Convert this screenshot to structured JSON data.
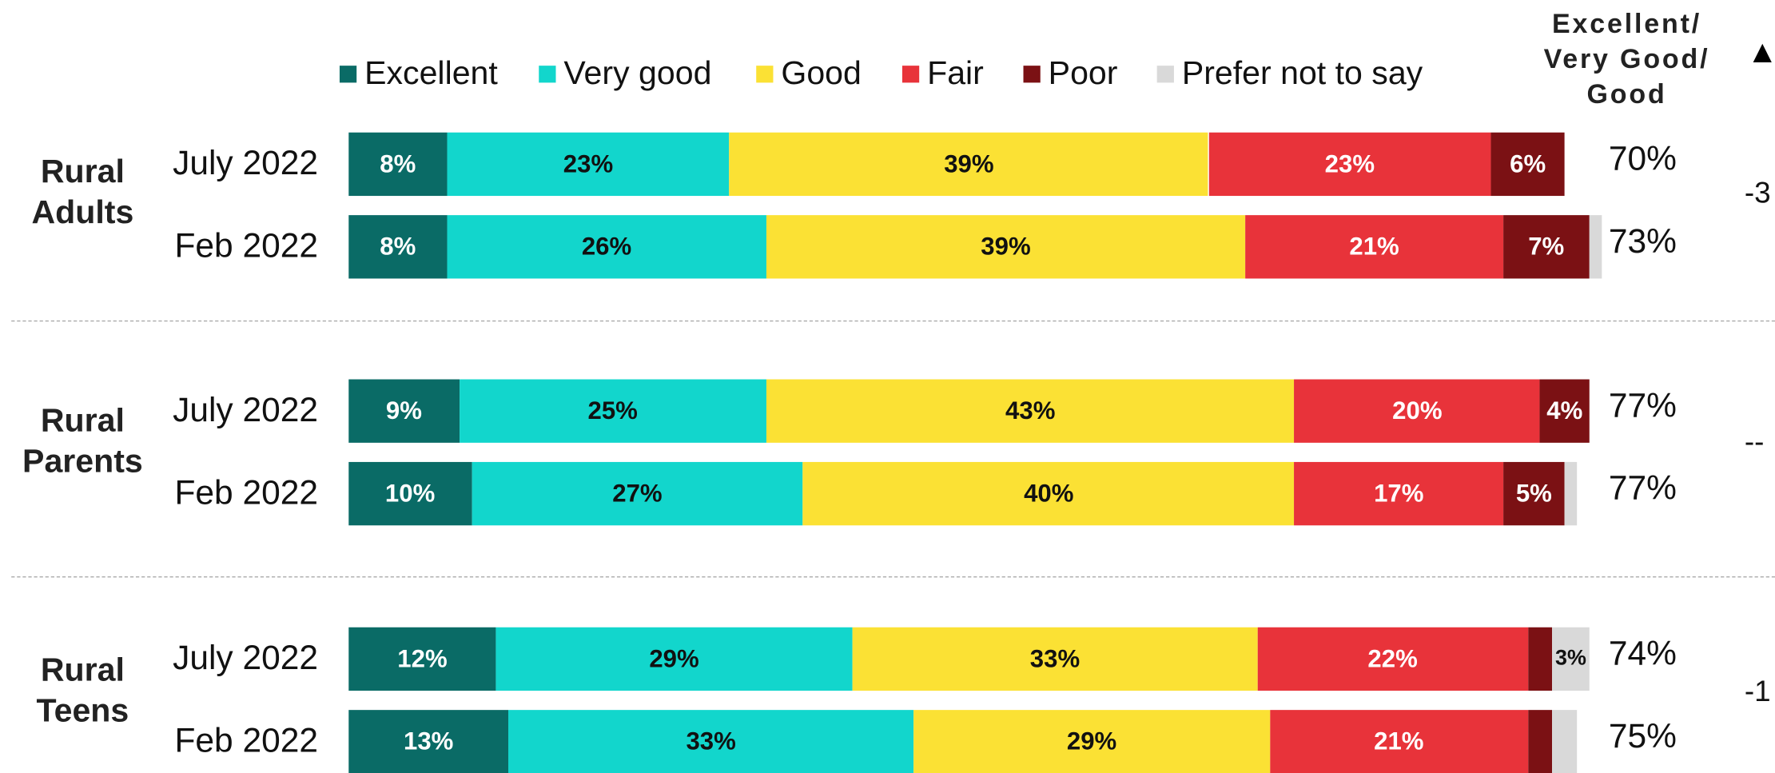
{
  "chart_data": {
    "type": "bar",
    "orientation": "horizontal",
    "stacked": true,
    "groups": [
      "Rural Adults",
      "Rural Parents",
      "Rural Teens"
    ],
    "categories": [
      "July 2022",
      "Feb 2022",
      "July 2022",
      "Feb 2022",
      "July 2022",
      "Feb 2022"
    ],
    "xlim": [
      0,
      100
    ],
    "series": [
      {
        "name": "Excellent",
        "color": "#0a6b66",
        "values": [
          8,
          8,
          9,
          10,
          12,
          13
        ],
        "value_labels": [
          "8%",
          "8%",
          "9%",
          "10%",
          "12%",
          "13%"
        ]
      },
      {
        "name": "Very good",
        "color": "#12d6cc",
        "values": [
          23,
          26,
          25,
          27,
          29,
          33
        ],
        "value_labels": [
          "23%",
          "26%",
          "25%",
          "27%",
          "29%",
          "33%"
        ]
      },
      {
        "name": "Good",
        "color": "#fbe134",
        "values": [
          39,
          39,
          43,
          40,
          33,
          29
        ],
        "value_labels": [
          "39%",
          "39%",
          "43%",
          "40%",
          "33%",
          "29%"
        ]
      },
      {
        "name": "Fair",
        "color": "#e8333a",
        "values": [
          23,
          21,
          20,
          17,
          22,
          21
        ],
        "value_labels": [
          "23%",
          "21%",
          "20%",
          "17%",
          "22%",
          "21%"
        ]
      },
      {
        "name": "Poor",
        "color": "#7b1114",
        "values": [
          6,
          7,
          4,
          5,
          2,
          2
        ],
        "value_labels": [
          "6%",
          "7%",
          "4%",
          "5%",
          null,
          null
        ]
      },
      {
        "name": "Prefer not to say",
        "color": "#d9d9d9",
        "values": [
          0,
          1,
          0,
          1,
          3,
          2
        ],
        "value_labels": [
          null,
          null,
          null,
          null,
          "3%",
          null
        ]
      }
    ],
    "summary": {
      "title": "Excellent/ Very Good/ Good",
      "values": [
        70,
        73,
        77,
        77,
        74,
        75
      ],
      "value_labels": [
        "70%",
        "73%",
        "77%",
        "77%",
        "74%",
        "75%"
      ]
    },
    "change": {
      "title": "▲",
      "labels": [
        "-3",
        "--",
        "-1"
      ]
    }
  }
}
